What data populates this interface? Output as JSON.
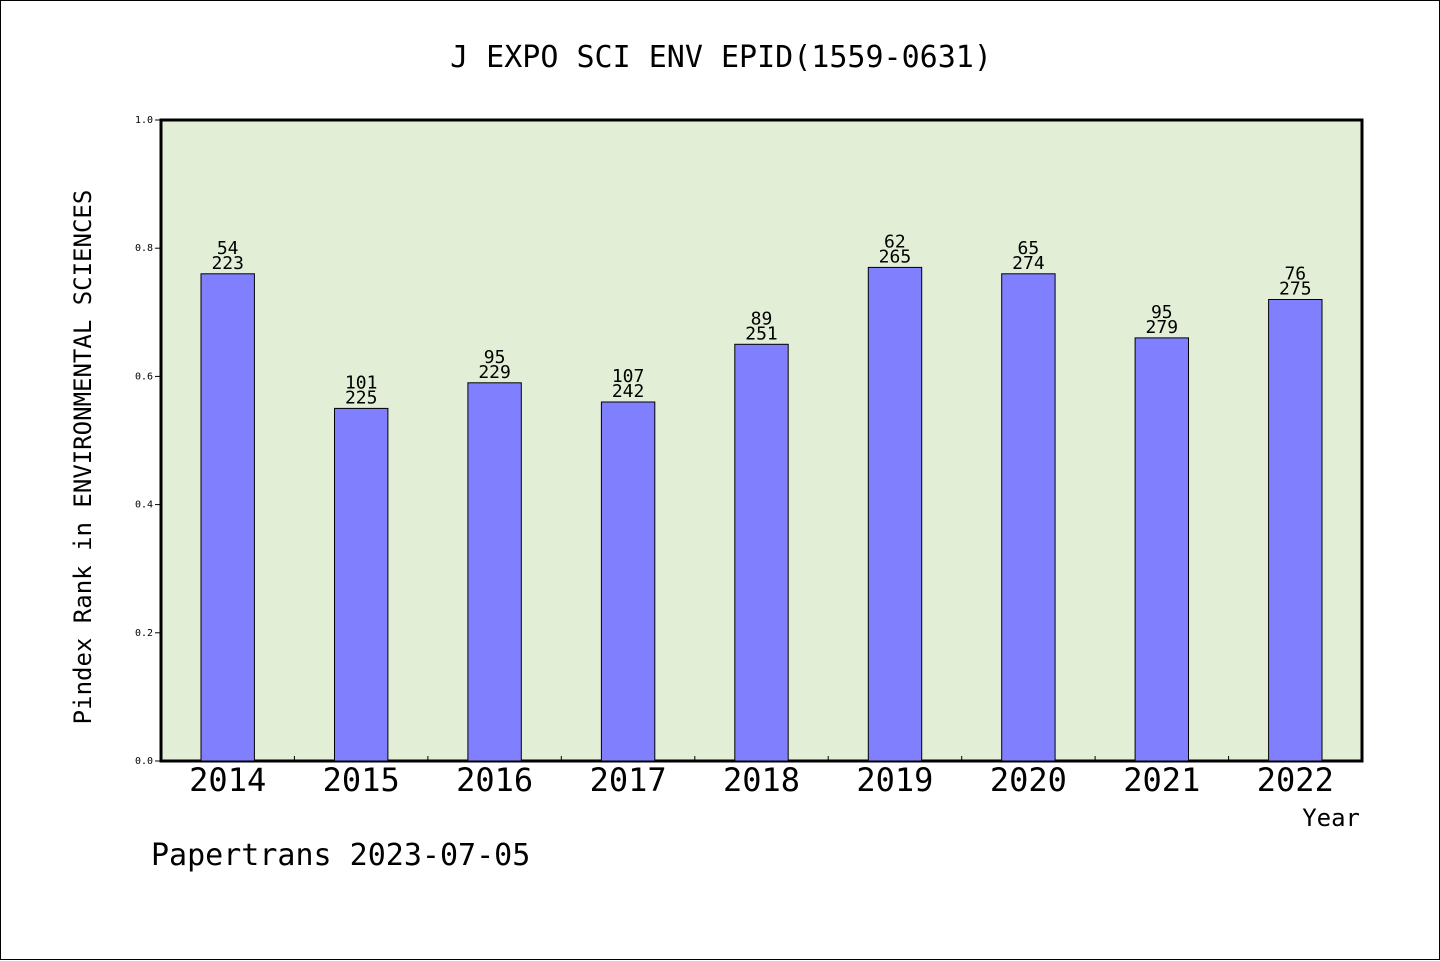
{
  "chart_data": {
    "type": "bar",
    "title": "J EXPO SCI ENV EPID(1559-0631)",
    "xlabel": "Year",
    "ylabel": "Pindex Rank in ENVIRONMENTAL SCIENCES",
    "categories": [
      "2014",
      "2015",
      "2016",
      "2017",
      "2018",
      "2019",
      "2020",
      "2021",
      "2022"
    ],
    "values": [
      0.76,
      0.55,
      0.59,
      0.56,
      0.65,
      0.77,
      0.76,
      0.66,
      0.72
    ],
    "rank_labels": [
      "54",
      "101",
      "95",
      "107",
      "89",
      "62",
      "65",
      "95",
      "76"
    ],
    "total_labels": [
      "223",
      "225",
      "229",
      "242",
      "251",
      "265",
      "274",
      "279",
      "275"
    ],
    "ylim": [
      0,
      1.0
    ],
    "yticks": [
      "0.0",
      "0.2",
      "0.4",
      "0.6",
      "0.8",
      "1.0"
    ],
    "grid": false,
    "colors": {
      "bar": "#8080ff",
      "plot_background": "#e2efd6",
      "axis": "#000000"
    }
  },
  "footer": {
    "text": "Papertrans 2023-07-05"
  }
}
